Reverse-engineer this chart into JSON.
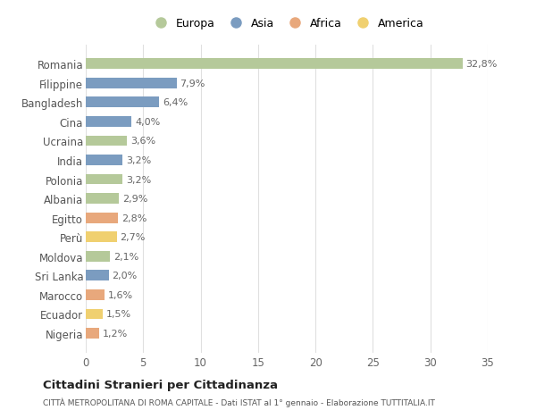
{
  "countries": [
    "Romania",
    "Filippine",
    "Bangladesh",
    "Cina",
    "Ucraina",
    "India",
    "Polonia",
    "Albania",
    "Egitto",
    "Perù",
    "Moldova",
    "Sri Lanka",
    "Marocco",
    "Ecuador",
    "Nigeria"
  ],
  "values": [
    32.8,
    7.9,
    6.4,
    4.0,
    3.6,
    3.2,
    3.2,
    2.9,
    2.8,
    2.7,
    2.1,
    2.0,
    1.6,
    1.5,
    1.2
  ],
  "labels": [
    "32,8%",
    "7,9%",
    "6,4%",
    "4,0%",
    "3,6%",
    "3,2%",
    "3,2%",
    "2,9%",
    "2,8%",
    "2,7%",
    "2,1%",
    "2,0%",
    "1,6%",
    "1,5%",
    "1,2%"
  ],
  "continents": [
    "Europa",
    "Asia",
    "Asia",
    "Asia",
    "Europa",
    "Asia",
    "Europa",
    "Europa",
    "Africa",
    "America",
    "Europa",
    "Asia",
    "Africa",
    "America",
    "Africa"
  ],
  "colors": {
    "Europa": "#b5c99a",
    "Asia": "#7b9cc0",
    "Africa": "#e8a87c",
    "America": "#f0d070"
  },
  "legend_order": [
    "Europa",
    "Asia",
    "Africa",
    "America"
  ],
  "title": "Cittadini Stranieri per Cittadinanza",
  "subtitle": "CITTÀ METROPOLITANA DI ROMA CAPITALE - Dati ISTAT al 1° gennaio - Elaborazione TUTTITALIA.IT",
  "xlim": [
    0,
    35
  ],
  "xticks": [
    0,
    5,
    10,
    15,
    20,
    25,
    30,
    35
  ],
  "background_color": "#ffffff",
  "grid_color": "#e0e0e0"
}
